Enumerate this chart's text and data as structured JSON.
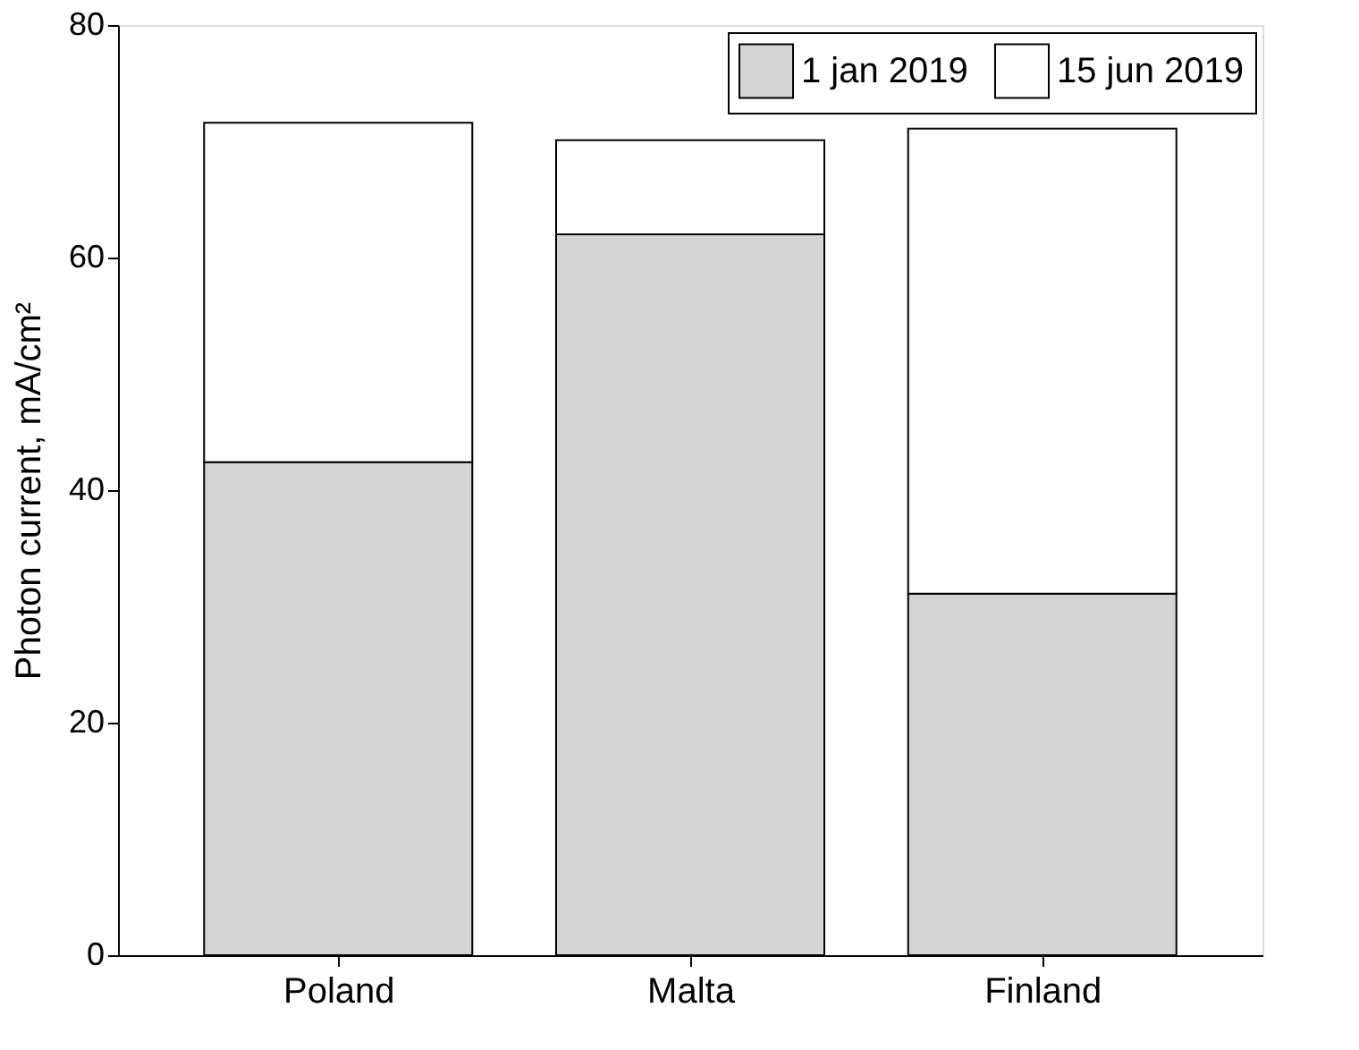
{
  "chart_data": {
    "type": "bar",
    "stacked": true,
    "ylabel": "Photon current, mA/cm²",
    "categories": [
      "Poland",
      "Malta",
      "Finland"
    ],
    "series": [
      {
        "name": "1 jan 2019",
        "color": "#d4d4d4",
        "values": [
          42.4,
          62.0,
          31.1
        ]
      },
      {
        "name": "15 jun 2019",
        "color": "#ffffff",
        "values": [
          29.2,
          8.1,
          40.0
        ]
      }
    ],
    "ylim": [
      0,
      80
    ],
    "yticks": [
      0,
      20,
      40,
      60,
      80
    ],
    "grid": false,
    "legend": "top right"
  }
}
